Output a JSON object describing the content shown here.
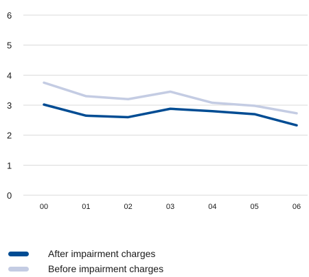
{
  "chart_data": {
    "type": "line",
    "title": "",
    "xlabel": "",
    "ylabel": "",
    "categories": [
      "00",
      "01",
      "02",
      "03",
      "04",
      "05",
      "06"
    ],
    "ylim": [
      0,
      6
    ],
    "yticks": [
      0,
      1,
      2,
      3,
      4,
      5,
      6
    ],
    "grid": "horizontal",
    "legend_position": "bottom",
    "series": [
      {
        "name": "After impairment charges",
        "color": "#004c93",
        "values": [
          3.02,
          2.65,
          2.6,
          2.88,
          2.8,
          2.7,
          2.33
        ]
      },
      {
        "name": "Before impairment charges",
        "color": "#c4cce3",
        "values": [
          3.75,
          3.3,
          3.2,
          3.45,
          3.08,
          2.98,
          2.73
        ]
      }
    ]
  }
}
